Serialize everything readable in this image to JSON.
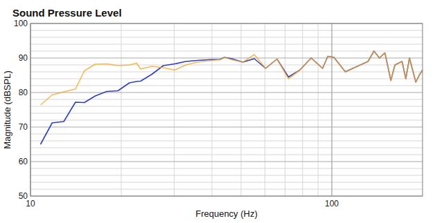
{
  "chart_data": {
    "type": "line",
    "title": "Sound Pressure Level",
    "x_label": "Frequency (Hz)",
    "y_label": "Magnitude (dBSPL)",
    "log": "x",
    "grid": true,
    "xlim": [
      10,
      200
    ],
    "ylim": [
      50,
      100
    ],
    "xticks": [
      10,
      100
    ],
    "yticks": [
      50,
      60,
      70,
      80,
      90,
      100
    ],
    "x": [
      10.8,
      11.8,
      12.9,
      14.1,
      15.1,
      16.4,
      17.9,
      19.5,
      21.3,
      22.5,
      23.2,
      25.3,
      27.6,
      30.1,
      32.8,
      35.8,
      39.0,
      42.6,
      44.0,
      46.5,
      50.7,
      55.3,
      60.3,
      65.8,
      71.8,
      78.3,
      85.4,
      93.2,
      97.0,
      101.6,
      110.9,
      120.9,
      131.9,
      138.0,
      143.9,
      150.0,
      157.0,
      162.0,
      171.0,
      176.0,
      181.0,
      190.0,
      195.0,
      200.0
    ],
    "series": [
      {
        "color": "#2b3fc4",
        "values": [
          65.0,
          71.2,
          71.6,
          77.2,
          77.1,
          79.0,
          80.3,
          80.5,
          82.8,
          83.2,
          83.3,
          85.3,
          87.8,
          88.3,
          89.0,
          89.3,
          89.5,
          89.6,
          90.2,
          89.8,
          88.8,
          89.8,
          87.0,
          89.7,
          84.5,
          86.5,
          90.0,
          87.0,
          90.5,
          90.2,
          86.0,
          87.5,
          89.0,
          92.0,
          90.0,
          91.5,
          83.5,
          88.0,
          89.0,
          84.0,
          90.0,
          83.0,
          85.0,
          86.5
        ]
      },
      {
        "color": "#f4a62a",
        "values": [
          76.4,
          79.3,
          80.2,
          81.0,
          86.3,
          88.2,
          88.3,
          87.8,
          88.0,
          88.5,
          86.8,
          87.6,
          87.2,
          86.5,
          88.0,
          88.8,
          89.2,
          89.5,
          90.2,
          89.5,
          88.8,
          91.0,
          87.0,
          89.7,
          84.0,
          86.5,
          90.0,
          87.0,
          90.5,
          90.2,
          86.0,
          87.5,
          89.0,
          92.0,
          90.0,
          91.5,
          83.5,
          88.0,
          89.0,
          84.0,
          90.0,
          83.0,
          85.0,
          86.5
        ]
      }
    ]
  }
}
